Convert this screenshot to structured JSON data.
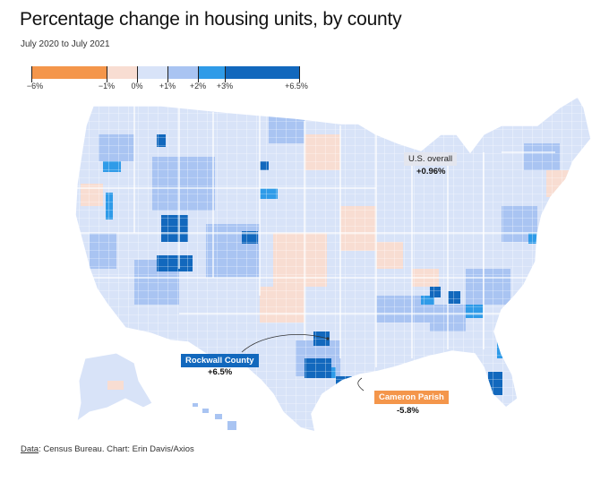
{
  "title": "Percentage change in housing units, by county",
  "subtitle": "July 2020 to July 2021",
  "legend": {
    "bins": [
      {
        "from": -6,
        "to": -1,
        "color": "#f4964b"
      },
      {
        "from": -1,
        "to": 0,
        "color": "#f8ddd2"
      },
      {
        "from": 0,
        "to": 1,
        "color": "#d8e3f8"
      },
      {
        "from": 1,
        "to": 2,
        "color": "#a9c4f2"
      },
      {
        "from": 2,
        "to": 3,
        "color": "#2f9be8"
      },
      {
        "from": 3,
        "to": 6.5,
        "color": "#1268bd"
      }
    ],
    "ticks": [
      "−6%",
      "−1%",
      "0%",
      "+1%",
      "+2%",
      "+3%",
      "+6.5%"
    ]
  },
  "annotations": {
    "us_overall_label": "U.S. overall",
    "us_overall_value": "+0.96%",
    "rockwall_label": "Rockwall County",
    "rockwall_value": "+6.5%",
    "cameron_label": "Cameron Parish",
    "cameron_value": "-5.8%"
  },
  "colors": {
    "base": "#d8e3f8",
    "light_blue": "#a9c4f2",
    "mid_blue": "#2f9be8",
    "dark_blue": "#1268bd",
    "light_orange": "#f8ddd2",
    "orange": "#f4964b",
    "border": "#ffffff",
    "label_bg": "#e4e6ee"
  },
  "footer": {
    "source_label": "Data",
    "source_text": ": Census Bureau. Chart: Erin Davis/Axios"
  }
}
